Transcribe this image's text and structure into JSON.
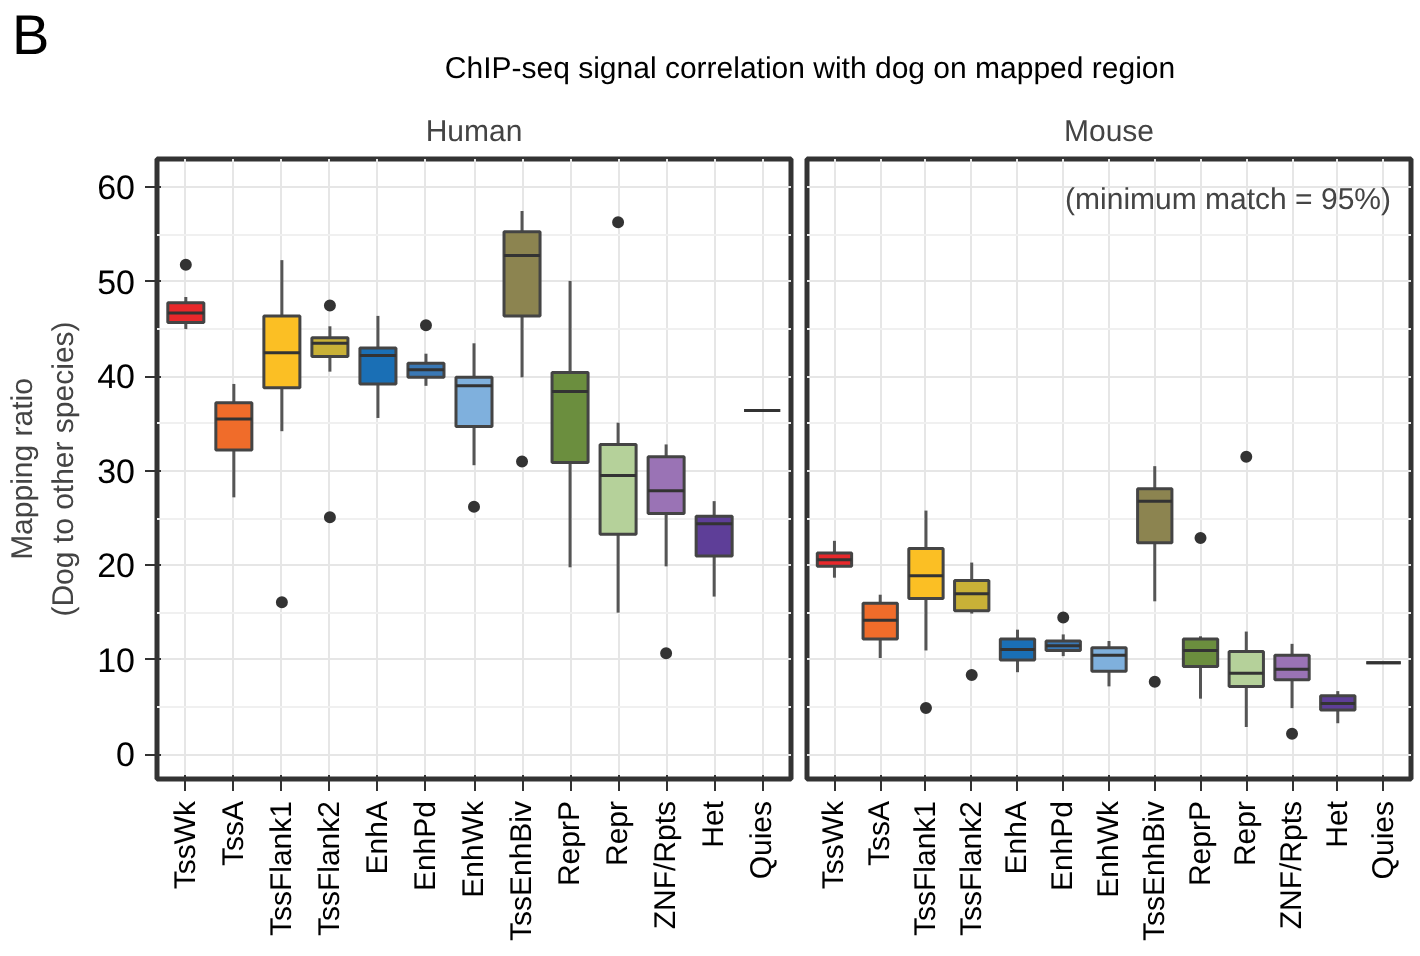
{
  "chart_data": [
    {
      "type": "box",
      "title": "ChIP-seq signal correlation with dog on mapped region",
      "subtitle": "Human",
      "ylabel": "Mapping ratio\n(Dog to other species)",
      "annotations": [
        "B"
      ],
      "categories": [
        "TssWk",
        "TssA",
        "TssFlank1",
        "TssFlank2",
        "EnhA",
        "EnhPd",
        "EnhWk",
        "TssEnhBiv",
        "ReprP",
        "Repr",
        "ZNF/Rpts",
        "Het",
        "Quies"
      ],
      "colors": [
        "#e8282b",
        "#f06c2a",
        "#fbbf24",
        "#c9b137",
        "#1a6fb5",
        "#3a78b5",
        "#7fb0dd",
        "#8c8450",
        "#6b8e3e",
        "#b5d19a",
        "#9a73b5",
        "#5e3e98",
        "#3a3a3a"
      ],
      "boxes": [
        {
          "low": 45.0,
          "q1": 45.7,
          "median": 46.7,
          "q3": 47.8,
          "high": 48.4,
          "outliers": [
            51.8
          ]
        },
        {
          "low": 27.2,
          "q1": 32.2,
          "median": 35.5,
          "q3": 37.2,
          "high": 39.2
        },
        {
          "low": 34.2,
          "q1": 38.8,
          "median": 42.5,
          "q3": 46.4,
          "high": 52.3,
          "outliers": [
            16.1
          ]
        },
        {
          "low": 40.5,
          "q1": 42.1,
          "median": 43.5,
          "q3": 44.1,
          "high": 45.3,
          "outliers": [
            47.5,
            25.1
          ]
        },
        {
          "low": 35.6,
          "q1": 39.2,
          "median": 42.2,
          "q3": 43.0,
          "high": 46.4
        },
        {
          "low": 39.0,
          "q1": 39.9,
          "median": 40.7,
          "q3": 41.4,
          "high": 42.4,
          "outliers": [
            45.4
          ]
        },
        {
          "low": 30.6,
          "q1": 34.7,
          "median": 39.0,
          "q3": 39.9,
          "high": 43.5,
          "outliers": [
            26.2
          ]
        },
        {
          "low": 39.9,
          "q1": 46.4,
          "median": 52.8,
          "q3": 55.3,
          "high": 57.5,
          "outliers": [
            31.0
          ]
        },
        {
          "low": 19.8,
          "q1": 30.9,
          "median": 38.4,
          "q3": 40.4,
          "high": 50.1
        },
        {
          "low": 15.0,
          "q1": 23.3,
          "median": 29.5,
          "q3": 32.8,
          "high": 35.1,
          "outliers": [
            56.3
          ]
        },
        {
          "low": 19.9,
          "q1": 25.5,
          "median": 27.9,
          "q3": 31.5,
          "high": 32.8,
          "outliers": [
            10.7
          ]
        },
        {
          "low": 16.7,
          "q1": 21.0,
          "median": 24.4,
          "q3": 25.2,
          "high": 26.8
        },
        {
          "low": 36.4,
          "q1": 36.4,
          "median": 36.4,
          "q3": 36.4,
          "high": 36.4
        }
      ],
      "ylim": [
        -2.6,
        63
      ],
      "yticks": [
        0,
        10,
        20,
        30,
        40,
        50,
        60
      ],
      "grid": true
    },
    {
      "type": "box",
      "subtitle": "Mouse",
      "annotations": [
        "(minimum match = 95%)"
      ],
      "tick_labels": "x",
      "categories": [
        "TssWk",
        "TssA",
        "TssFlank1",
        "TssFlank2",
        "EnhA",
        "EnhPd",
        "EnhWk",
        "TssEnhBiv",
        "ReprP",
        "Repr",
        "ZNF/Rpts",
        "Het",
        "Quies"
      ],
      "colors": [
        "#e8282b",
        "#f06c2a",
        "#fbbf24",
        "#c9b137",
        "#1a6fb5",
        "#3a78b5",
        "#7fb0dd",
        "#8c8450",
        "#6b8e3e",
        "#b5d19a",
        "#9a73b5",
        "#5e3e98",
        "#3a3a3a"
      ],
      "boxes": [
        {
          "low": 18.7,
          "q1": 19.9,
          "median": 20.6,
          "q3": 21.3,
          "high": 22.6
        },
        {
          "low": 10.2,
          "q1": 12.2,
          "median": 14.2,
          "q3": 16.0,
          "high": 16.9
        },
        {
          "low": 11.0,
          "q1": 16.5,
          "median": 18.9,
          "q3": 21.8,
          "high": 25.8,
          "outliers": [
            4.9
          ]
        },
        {
          "low": 14.9,
          "q1": 15.2,
          "median": 17.0,
          "q3": 18.4,
          "high": 20.3,
          "outliers": [
            8.4
          ]
        },
        {
          "low": 8.7,
          "q1": 10.0,
          "median": 11.1,
          "q3": 12.2,
          "high": 13.2
        },
        {
          "low": 10.4,
          "q1": 11.0,
          "median": 11.5,
          "q3": 12.0,
          "high": 12.7,
          "outliers": [
            14.5
          ]
        },
        {
          "low": 7.2,
          "q1": 8.8,
          "median": 10.5,
          "q3": 11.3,
          "high": 12.0
        },
        {
          "low": 16.2,
          "q1": 22.4,
          "median": 26.8,
          "q3": 28.1,
          "high": 30.5,
          "outliers": [
            7.7
          ]
        },
        {
          "low": 5.9,
          "q1": 9.3,
          "median": 11.0,
          "q3": 12.2,
          "high": 12.5,
          "outliers": [
            22.9
          ]
        },
        {
          "low": 2.9,
          "q1": 7.2,
          "median": 8.6,
          "q3": 10.9,
          "high": 13.0,
          "outliers": [
            31.5
          ]
        },
        {
          "low": 4.9,
          "q1": 7.9,
          "median": 9.0,
          "q3": 10.5,
          "high": 11.7,
          "outliers": [
            2.2
          ]
        },
        {
          "low": 3.3,
          "q1": 4.7,
          "median": 5.4,
          "q3": 6.2,
          "high": 6.7
        },
        {
          "low": 9.7,
          "q1": 9.7,
          "median": 9.7,
          "q3": 9.7,
          "high": 9.7
        }
      ],
      "ylim": [
        -2.6,
        63
      ],
      "yticks": [
        0,
        10,
        20,
        30,
        40,
        50,
        60
      ],
      "grid": true
    }
  ]
}
